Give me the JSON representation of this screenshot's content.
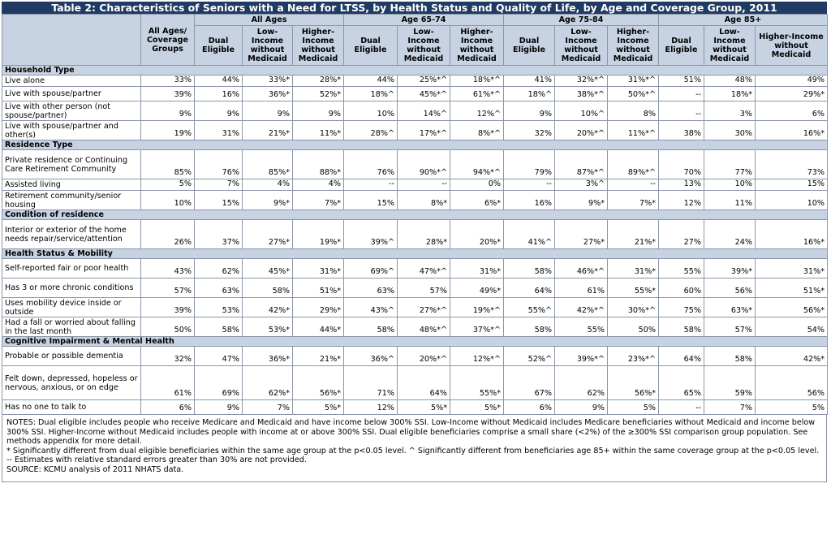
{
  "title": "Table 2: Characteristics of Seniors with a Need for LTSS, by Health Status and Quality of Life, by Age and Coverage Group, 2011",
  "header": {
    "all_col": "All Ages/ Coverage Groups",
    "groups": [
      "All Ages",
      "Age 65-74",
      "Age 75-84",
      "Age 85+"
    ],
    "subcols": [
      "Dual Eligible",
      "Low-Income without Medicaid",
      "Higher-Income without Medicaid"
    ]
  },
  "sections": [
    {
      "title": "Household Type",
      "rows": [
        {
          "label": "Live alone",
          "values": [
            "33%",
            "44%",
            "33%*",
            "28%*",
            "44%",
            "25%*^",
            "18%*^",
            "41%",
            "32%*^",
            "31%*^",
            "51%",
            "48%",
            "49%"
          ]
        },
        {
          "label": "Live with spouse/partner",
          "values": [
            "39%",
            "16%",
            "36%*",
            "52%*",
            "18%^",
            "45%*^",
            "61%*^",
            "18%^",
            "38%*^",
            "50%*^",
            "--",
            "18%*",
            "29%*"
          ]
        },
        {
          "label": "Live with other person (not spouse/partner)",
          "values": [
            "9%",
            "9%",
            "9%",
            "9%",
            "10%",
            "14%^",
            "12%^",
            "9%",
            "10%^",
            "8%",
            "--",
            "3%",
            "6%"
          ]
        },
        {
          "label": "Live with spouse/partner and other(s)",
          "values": [
            "19%",
            "31%",
            "21%*",
            "11%*",
            "28%^",
            "17%*^",
            "8%*^",
            "32%",
            "20%*^",
            "11%*^",
            "38%",
            "30%",
            "16%*"
          ]
        }
      ]
    },
    {
      "title": "Residence Type",
      "rows": [
        {
          "label": "Private residence or Continuing Care Retirement Community",
          "values": [
            "85%",
            "76%",
            "85%*",
            "88%*",
            "76%",
            "90%*^",
            "94%*^",
            "79%",
            "87%*^",
            "89%*^",
            "70%",
            "77%",
            "73%"
          ]
        },
        {
          "label": "Assisted living",
          "values": [
            "5%",
            "7%",
            "4%",
            "4%",
            "--",
            "--",
            "0%",
            "--",
            "3%^",
            "--",
            "13%",
            "10%",
            "15%"
          ]
        },
        {
          "label": "Retirement community/senior housing",
          "values": [
            "10%",
            "15%",
            "9%*",
            "7%*",
            "15%",
            "8%*",
            "6%*",
            "16%",
            "9%*",
            "7%*",
            "12%",
            "11%",
            "10%"
          ]
        }
      ]
    },
    {
      "title": "Condition of residence",
      "rows": [
        {
          "label": "Interior or exterior of the home needs repair/service/attention",
          "values": [
            "26%",
            "37%",
            "27%*",
            "19%*",
            "39%^",
            "28%*",
            "20%*",
            "41%^",
            "27%*",
            "21%*",
            "27%",
            "24%",
            "16%*"
          ]
        }
      ]
    },
    {
      "title": "Health Status & Mobility",
      "rows": [
        {
          "label": "Self-reported fair or poor health",
          "values": [
            "43%",
            "62%",
            "45%*",
            "31%*",
            "69%^",
            "47%*^",
            "31%*",
            "58%",
            "46%*^",
            "31%*",
            "55%",
            "39%*",
            "31%*"
          ]
        },
        {
          "label": "Has 3 or more chronic conditions",
          "values": [
            "57%",
            "63%",
            "58%",
            "51%*",
            "63%",
            "57%",
            "49%*",
            "64%",
            "61%",
            "55%*",
            "60%",
            "56%",
            "51%*"
          ]
        },
        {
          "label": "Uses mobility device inside or outside",
          "values": [
            "39%",
            "53%",
            "42%*",
            "29%*",
            "43%^",
            "27%*^",
            "19%*^",
            "55%^",
            "42%*^",
            "30%*^",
            "75%",
            "63%*",
            "56%*"
          ]
        },
        {
          "label": "Had a fall or worried about falling in the last month",
          "values": [
            "50%",
            "58%",
            "53%*",
            "44%*",
            "58%",
            "48%*^",
            "37%*^",
            "58%",
            "55%",
            "50%",
            "58%",
            "57%",
            "54%"
          ]
        }
      ]
    },
    {
      "title": "Cognitive Impairment & Mental Health",
      "rows": [
        {
          "label": "Probable or possible dementia",
          "values": [
            "32%",
            "47%",
            "36%*",
            "21%*",
            "36%^",
            "20%*^",
            "12%*^",
            "52%^",
            "39%*^",
            "23%*^",
            "64%",
            "58%",
            "42%*"
          ]
        },
        {
          "label": "Felt down, depressed, hopeless or nervous, anxious, or on edge",
          "values": [
            "61%",
            "69%",
            "62%*",
            "56%*",
            "71%",
            "64%",
            "55%*",
            "67%",
            "62%",
            "56%*",
            "65%",
            "59%",
            "56%"
          ]
        },
        {
          "label": "Has no one to talk to",
          "values": [
            "6%",
            "9%",
            "7%",
            "5%*",
            "12%",
            "5%*",
            "5%*",
            "6%",
            "9%",
            "5%",
            "--",
            "7%",
            "5%"
          ]
        }
      ]
    }
  ],
  "notes": [
    "NOTES: Dual eligible includes people who receive Medicare and Medicaid and have income below 300% SSI. Low-Income without Medicaid includes Medicare beneficiaries without Medicaid and income below 300% SSI. Higher-Income without Medicaid includes people with income at or above 300% SSI. Dual eligible beneficiaries comprise a small share (<2%) of the ≥300% SSI comparison group population. See methods appendix for more detail.",
    "* Significantly different from dual eligible beneficiaries within the same age group at the p<0.05 level. ^ Significantly different from beneficiaries age 85+ within the same coverage group at the p<0.05 level. -- Estimates with relative standard errors greater than 30% are not provided.",
    "SOURCE: KCMU analysis of 2011 NHATS data."
  ]
}
